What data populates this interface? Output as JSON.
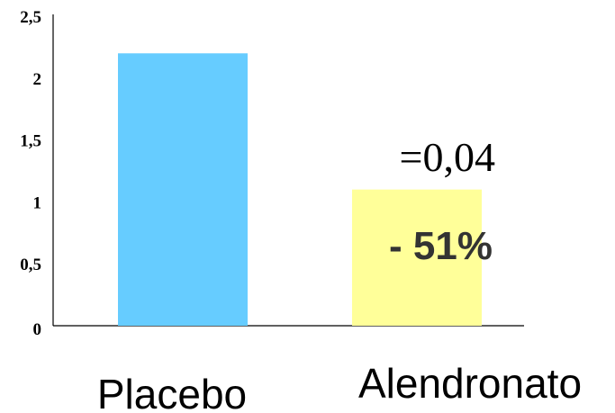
{
  "chart_data": {
    "type": "bar",
    "categories": [
      "Placebo",
      "Alendronato"
    ],
    "values": [
      2.2,
      1.1
    ],
    "colors": [
      "#66CCFF",
      "#FFFF99"
    ],
    "ylim": [
      0,
      2.5
    ],
    "yticks": [
      "0",
      "0,5",
      "1",
      "1,5",
      "2",
      "2,5"
    ],
    "title": "",
    "xlabel": "",
    "ylabel": "",
    "annotations": {
      "p_value": "=0,04",
      "reduction": "- 51%"
    },
    "grid": false
  }
}
